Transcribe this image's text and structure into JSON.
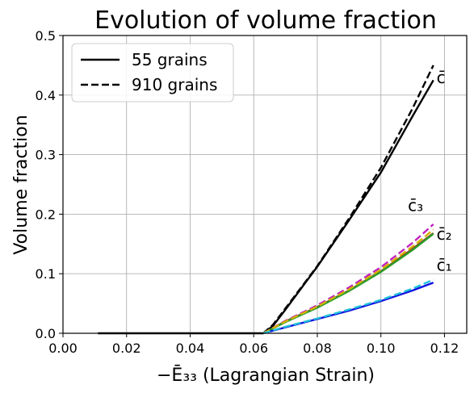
{
  "chart_data": {
    "type": "line",
    "title": "Evolution of volume fraction",
    "xlabel": "−Ē₃₃ (Lagrangian Strain)",
    "ylabel": "Volume fraction",
    "xlim": [
      0.0,
      0.127
    ],
    "ylim": [
      0.0,
      0.5
    ],
    "xticks": [
      "0.00",
      "0.02",
      "0.04",
      "0.06",
      "0.08",
      "0.10",
      "0.12"
    ],
    "xtick_values": [
      0.0,
      0.02,
      0.04,
      0.06,
      0.08,
      0.1,
      0.12
    ],
    "yticks": [
      "0.0",
      "0.1",
      "0.2",
      "0.3",
      "0.4",
      "0.5"
    ],
    "ytick_values": [
      0.0,
      0.1,
      0.2,
      0.3,
      0.4,
      0.5
    ],
    "grid": true,
    "legend": {
      "placement": "top-left",
      "entries": [
        {
          "label": "55 grains",
          "style": "solid",
          "color": "#000000"
        },
        {
          "label": "910 grains",
          "style": "dashed",
          "color": "#000000"
        }
      ]
    },
    "series": [
      {
        "group": "c",
        "grains": 55,
        "style": "solid",
        "color": "#000000",
        "x": [
          0.011,
          0.063,
          0.066,
          0.07,
          0.08,
          0.09,
          0.1,
          0.11,
          0.1165
        ],
        "y": [
          0.0,
          0.0,
          0.012,
          0.04,
          0.112,
          0.19,
          0.27,
          0.365,
          0.425
        ]
      },
      {
        "group": "c",
        "grains": 910,
        "style": "dashed",
        "color": "#000000",
        "x": [
          0.063,
          0.066,
          0.07,
          0.08,
          0.09,
          0.1,
          0.11,
          0.1165
        ],
        "y": [
          0.0,
          0.014,
          0.042,
          0.113,
          0.193,
          0.278,
          0.378,
          0.45
        ]
      },
      {
        "group": "c3",
        "grains": 55,
        "style": "solid",
        "color": "#8b3a1a",
        "x": [
          0.063,
          0.07,
          0.08,
          0.09,
          0.1,
          0.11,
          0.1165
        ],
        "y": [
          0.0,
          0.02,
          0.044,
          0.072,
          0.104,
          0.142,
          0.168
        ]
      },
      {
        "group": "c3",
        "grains": 910,
        "style": "dashed",
        "color": "#c020c0",
        "x": [
          0.063,
          0.07,
          0.08,
          0.09,
          0.1,
          0.11,
          0.1165
        ],
        "y": [
          0.0,
          0.021,
          0.047,
          0.077,
          0.111,
          0.152,
          0.183
        ]
      },
      {
        "group": "c2",
        "grains": 55,
        "style": "solid",
        "color": "#2ca02c",
        "x": [
          0.063,
          0.07,
          0.08,
          0.09,
          0.1,
          0.11,
          0.1165
        ],
        "y": [
          0.0,
          0.019,
          0.043,
          0.071,
          0.103,
          0.14,
          0.167
        ]
      },
      {
        "group": "c2",
        "grains": 910,
        "style": "dashed",
        "color": "#d4b000",
        "x": [
          0.063,
          0.07,
          0.08,
          0.09,
          0.1,
          0.11,
          0.1165
        ],
        "y": [
          0.0,
          0.02,
          0.045,
          0.074,
          0.107,
          0.146,
          0.174
        ]
      },
      {
        "group": "c1",
        "grains": 55,
        "style": "solid",
        "color": "#1010e0",
        "x": [
          0.063,
          0.07,
          0.08,
          0.09,
          0.1,
          0.11,
          0.1165
        ],
        "y": [
          0.0,
          0.01,
          0.024,
          0.038,
          0.054,
          0.072,
          0.085
        ]
      },
      {
        "group": "c1",
        "grains": 910,
        "style": "dashed",
        "color": "#20c0d8",
        "x": [
          0.063,
          0.07,
          0.08,
          0.09,
          0.1,
          0.11,
          0.1165
        ],
        "y": [
          0.0,
          0.011,
          0.025,
          0.04,
          0.056,
          0.075,
          0.09
        ]
      }
    ],
    "annotations": [
      {
        "text": "c̄",
        "x": 0.1175,
        "y": 0.42
      },
      {
        "text": "c̄₃",
        "x": 0.1085,
        "y": 0.205
      },
      {
        "text": "c̄₂",
        "x": 0.1175,
        "y": 0.157
      },
      {
        "text": "c̄₁",
        "x": 0.1175,
        "y": 0.105
      }
    ]
  }
}
